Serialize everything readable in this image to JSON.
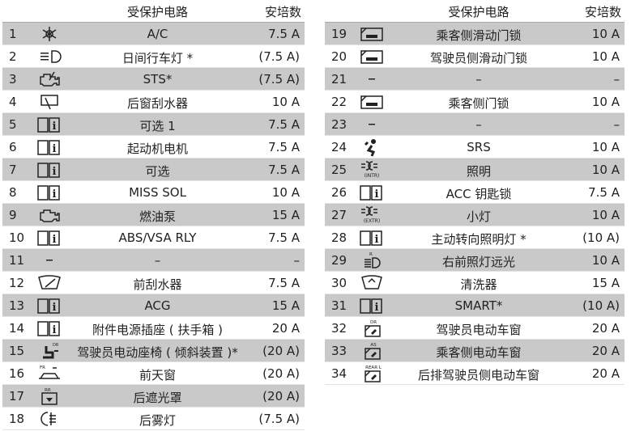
{
  "header": {
    "circuit": "受保护电路",
    "amps": "安培数"
  },
  "left": [
    {
      "no": "1",
      "icon": "ac-icon",
      "desc": "A/C",
      "amp": "7.5 A"
    },
    {
      "no": "2",
      "icon": "daytime-running-light-icon",
      "desc": "日间行车灯 *",
      "amp": "(7.5 A)"
    },
    {
      "no": "3",
      "icon": "engine-sts-icon",
      "desc": "STS*",
      "amp": "(7.5 A)"
    },
    {
      "no": "4",
      "icon": "rear-wiper-icon",
      "desc": "后窗刮水器",
      "amp": "10 A"
    },
    {
      "no": "5",
      "icon": "book-info-icon",
      "desc": "可选 1",
      "amp": "7.5 A"
    },
    {
      "no": "6",
      "icon": "book-info-icon",
      "desc": "起动机电机",
      "amp": "7.5 A"
    },
    {
      "no": "7",
      "icon": "book-info-icon",
      "desc": "可选",
      "amp": "7.5 A"
    },
    {
      "no": "8",
      "icon": "book-info-icon",
      "desc": "MISS SOL",
      "amp": "10 A"
    },
    {
      "no": "9",
      "icon": "engine-icon",
      "desc": "燃油泵",
      "amp": "15 A"
    },
    {
      "no": "10",
      "icon": "book-info-icon",
      "desc": "ABS/VSA RLY",
      "amp": "7.5 A"
    },
    {
      "no": "11",
      "icon": "dash",
      "desc": "–",
      "amp": "–"
    },
    {
      "no": "12",
      "icon": "front-wiper-icon",
      "desc": "前刮水器",
      "amp": "7.5 A"
    },
    {
      "no": "13",
      "icon": "book-info-icon",
      "desc": "ACG",
      "amp": "15 A"
    },
    {
      "no": "14",
      "icon": "book-info-icon",
      "desc": "附件电源插座 ( 扶手箱 )",
      "amp": "20 A"
    },
    {
      "no": "15",
      "icon": "power-seat-icon",
      "desc": "驾驶员电动座椅 ( 倾斜装置 )*",
      "amp": "(20 A)"
    },
    {
      "no": "16",
      "icon": "sunroof-icon",
      "desc": "前天窗",
      "amp": "(20 A)"
    },
    {
      "no": "17",
      "icon": "rear-sunshade-icon",
      "desc": "后遮光罩",
      "amp": "(20 A)"
    },
    {
      "no": "18",
      "icon": "rear-fog-icon",
      "desc": "后雾灯",
      "amp": "(7.5 A)"
    }
  ],
  "right": [
    {
      "no": "19",
      "icon": "sliding-door-lock-icon",
      "desc": "乘客侧滑动门锁",
      "amp": "10 A"
    },
    {
      "no": "20",
      "icon": "sliding-door-lock-icon",
      "desc": "驾驶员侧滑动门锁",
      "amp": "10 A"
    },
    {
      "no": "21",
      "icon": "dash",
      "desc": "–",
      "amp": "–"
    },
    {
      "no": "22",
      "icon": "door-lock-icon",
      "desc": "乘客侧门锁",
      "amp": "10 A"
    },
    {
      "no": "23",
      "icon": "dash",
      "desc": "–",
      "amp": "–"
    },
    {
      "no": "24",
      "icon": "airbag-icon",
      "desc": "SRS",
      "amp": "10 A"
    },
    {
      "no": "25",
      "icon": "interior-light-icon",
      "iconLabel": "(INTR)",
      "desc": "照明",
      "amp": "10 A"
    },
    {
      "no": "26",
      "icon": "book-info-icon",
      "desc": "ACC 钥匙锁",
      "amp": "7.5 A"
    },
    {
      "no": "27",
      "icon": "exterior-light-icon",
      "iconLabel": "(EXTR)",
      "desc": "小灯",
      "amp": "10 A"
    },
    {
      "no": "28",
      "icon": "book-info-icon",
      "desc": "主动转向照明灯 *",
      "amp": "(10 A)"
    },
    {
      "no": "29",
      "icon": "high-beam-right-icon",
      "desc": "右前照灯远光",
      "amp": "10 A"
    },
    {
      "no": "30",
      "icon": "washer-icon",
      "desc": "清洗器",
      "amp": "15 A"
    },
    {
      "no": "31",
      "icon": "book-info-icon",
      "desc": "SMART*",
      "amp": "(10 A)"
    },
    {
      "no": "32",
      "icon": "power-window-icon",
      "iconLabel": "DR",
      "desc": "驾驶员电动车窗",
      "amp": "20 A"
    },
    {
      "no": "33",
      "icon": "power-window-icon",
      "iconLabel": "AS",
      "desc": "乘客侧电动车窗",
      "amp": "20 A"
    },
    {
      "no": "34",
      "icon": "power-window-icon",
      "iconLabel": "REAR L",
      "desc": "后排驾驶员侧电动车窗",
      "amp": "20 A"
    }
  ],
  "colors": {
    "stripe": "#c9c9c9"
  }
}
